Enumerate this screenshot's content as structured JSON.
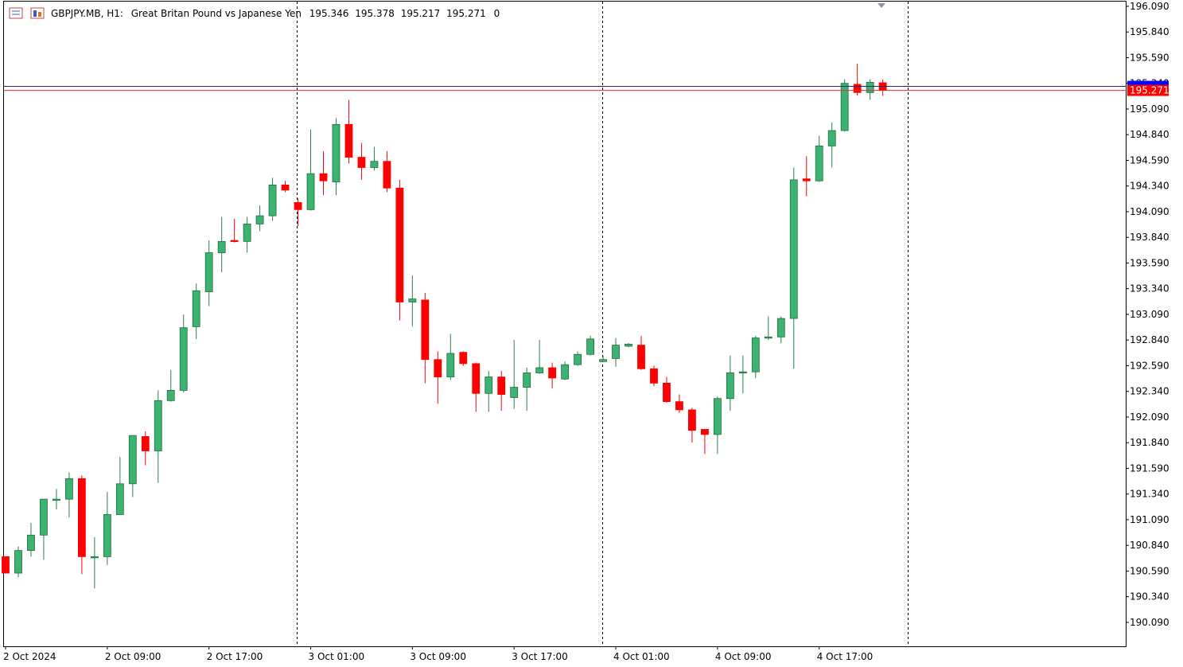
{
  "chart_data": {
    "type": "candlestick",
    "title": "GBPJPY.MB, H1:",
    "subtitle": "Great Britan Pound vs Japanese Yen",
    "header_suffix": "0",
    "categories": [
      "2 Oct 2024",
      null,
      null,
      null,
      null,
      null,
      null,
      null,
      "2 Oct 09:00",
      null,
      null,
      null,
      null,
      null,
      null,
      null,
      "2 Oct 17:00",
      null,
      null,
      null,
      null,
      null,
      null,
      null,
      "3 Oct 01:00",
      null,
      null,
      null,
      null,
      null,
      null,
      null,
      "3 Oct 09:00",
      null,
      null,
      null,
      null,
      null,
      null,
      null,
      "3 Oct 17:00",
      null,
      null,
      null,
      null,
      null,
      null,
      null,
      "4 Oct 01:00",
      null,
      null,
      null,
      null,
      null,
      null,
      null,
      "4 Oct 09:00",
      null,
      null,
      null,
      null,
      null,
      null,
      null,
      "4 Oct 17:00",
      null,
      null,
      null,
      null,
      null
    ],
    "open": [
      190.73,
      190.57,
      190.79,
      190.94,
      191.28,
      191.29,
      191.49,
      190.72,
      190.73,
      191.14,
      191.44,
      191.9,
      191.76,
      192.25,
      192.35,
      192.97,
      193.31,
      193.69,
      193.81,
      193.8,
      193.97,
      194.05,
      194.35,
      194.18,
      194.11,
      194.46,
      194.38,
      194.94,
      194.62,
      194.52,
      194.58,
      194.32,
      193.21,
      193.23,
      192.65,
      192.48,
      192.72,
      192.61,
      192.32,
      192.48,
      192.28,
      192.38,
      192.52,
      192.57,
      192.46,
      192.6,
      192.7,
      192.63,
      192.66,
      192.78,
      192.79,
      192.56,
      192.42,
      192.24,
      192.16,
      191.97,
      191.92,
      192.27,
      192.52,
      192.53,
      192.86,
      192.87,
      193.05,
      194.41,
      194.39,
      194.73,
      194.88,
      195.33,
      195.25,
      195.346
    ],
    "high": [
      190.73,
      190.83,
      191.06,
      191.29,
      191.39,
      191.55,
      191.52,
      190.92,
      191.36,
      191.7,
      191.91,
      191.95,
      192.35,
      192.55,
      193.09,
      193.39,
      193.81,
      194.04,
      194.02,
      194.04,
      194.15,
      194.42,
      194.39,
      194.22,
      194.89,
      194.68,
      195.0,
      195.18,
      194.76,
      194.72,
      194.68,
      194.4,
      193.47,
      193.3,
      192.73,
      192.9,
      192.73,
      192.62,
      192.54,
      192.54,
      192.84,
      192.57,
      192.84,
      192.62,
      192.63,
      192.73,
      192.88,
      192.69,
      192.86,
      192.81,
      192.88,
      192.59,
      192.48,
      192.31,
      192.18,
      191.97,
      192.29,
      192.69,
      192.69,
      192.88,
      193.07,
      193.07,
      194.52,
      194.63,
      194.83,
      194.96,
      195.38,
      195.53,
      195.38,
      195.378
    ],
    "low": [
      190.57,
      190.53,
      190.73,
      190.7,
      191.19,
      191.11,
      190.56,
      190.42,
      190.65,
      191.14,
      191.31,
      191.62,
      191.45,
      192.24,
      192.33,
      192.85,
      193.17,
      193.5,
      193.79,
      193.69,
      193.9,
      194.0,
      194.28,
      193.95,
      194.1,
      194.25,
      194.25,
      194.56,
      194.4,
      194.49,
      194.28,
      193.03,
      192.97,
      192.42,
      192.22,
      192.45,
      192.59,
      192.14,
      192.14,
      192.15,
      192.17,
      192.15,
      192.51,
      192.37,
      192.45,
      192.59,
      192.69,
      192.63,
      192.58,
      192.77,
      192.55,
      192.39,
      192.23,
      192.13,
      191.84,
      191.73,
      191.73,
      192.15,
      192.32,
      192.47,
      192.84,
      192.81,
      192.56,
      194.24,
      194.38,
      194.52,
      194.87,
      195.22,
      195.18,
      195.217
    ],
    "close": [
      190.57,
      190.79,
      190.94,
      191.29,
      191.29,
      191.49,
      190.73,
      190.73,
      191.14,
      191.44,
      191.91,
      191.76,
      192.25,
      192.35,
      192.96,
      193.32,
      193.69,
      193.8,
      193.8,
      193.97,
      194.05,
      194.35,
      194.3,
      194.11,
      194.46,
      194.39,
      194.94,
      194.62,
      194.52,
      194.58,
      194.32,
      193.21,
      193.24,
      192.65,
      192.48,
      192.71,
      192.61,
      192.32,
      192.48,
      192.31,
      192.38,
      192.52,
      192.57,
      192.47,
      192.6,
      192.7,
      192.85,
      192.65,
      192.79,
      192.8,
      192.56,
      192.42,
      192.24,
      192.16,
      191.96,
      191.92,
      192.27,
      192.52,
      192.53,
      192.86,
      192.87,
      193.05,
      194.4,
      194.39,
      194.73,
      194.88,
      195.34,
      195.25,
      195.35,
      195.271
    ],
    "up_color": "#3cb371",
    "down_color": "#ff0000",
    "ask": 195.31,
    "ylim": [
      189.857,
      196.136
    ],
    "yticks": [
      {
        "value": 196.09,
        "label": "196.090"
      },
      {
        "value": 195.84,
        "label": "195.840"
      },
      {
        "value": 195.59,
        "label": "195.590"
      },
      {
        "value": 195.34,
        "label": "195.340"
      },
      {
        "value": 195.09,
        "label": "195.090"
      },
      {
        "value": 194.84,
        "label": "194.840"
      },
      {
        "value": 194.59,
        "label": "194.590"
      },
      {
        "value": 194.34,
        "label": "194.340"
      },
      {
        "value": 194.09,
        "label": "194.090"
      },
      {
        "value": 193.84,
        "label": "193.840"
      },
      {
        "value": 193.59,
        "label": "193.590"
      },
      {
        "value": 193.34,
        "label": "193.340"
      },
      {
        "value": 193.09,
        "label": "193.090"
      },
      {
        "value": 192.84,
        "label": "192.840"
      },
      {
        "value": 192.59,
        "label": "192.590"
      },
      {
        "value": 192.34,
        "label": "192.340"
      },
      {
        "value": 192.09,
        "label": "192.090"
      },
      {
        "value": 191.84,
        "label": "191.840"
      },
      {
        "value": 191.59,
        "label": "191.590"
      },
      {
        "value": 191.34,
        "label": "191.340"
      },
      {
        "value": 191.09,
        "label": "191.090"
      },
      {
        "value": 190.84,
        "label": "190.840"
      },
      {
        "value": 190.59,
        "label": "190.590"
      },
      {
        "value": 190.34,
        "label": "190.340"
      },
      {
        "value": 190.09,
        "label": "190.090"
      }
    ]
  }
}
